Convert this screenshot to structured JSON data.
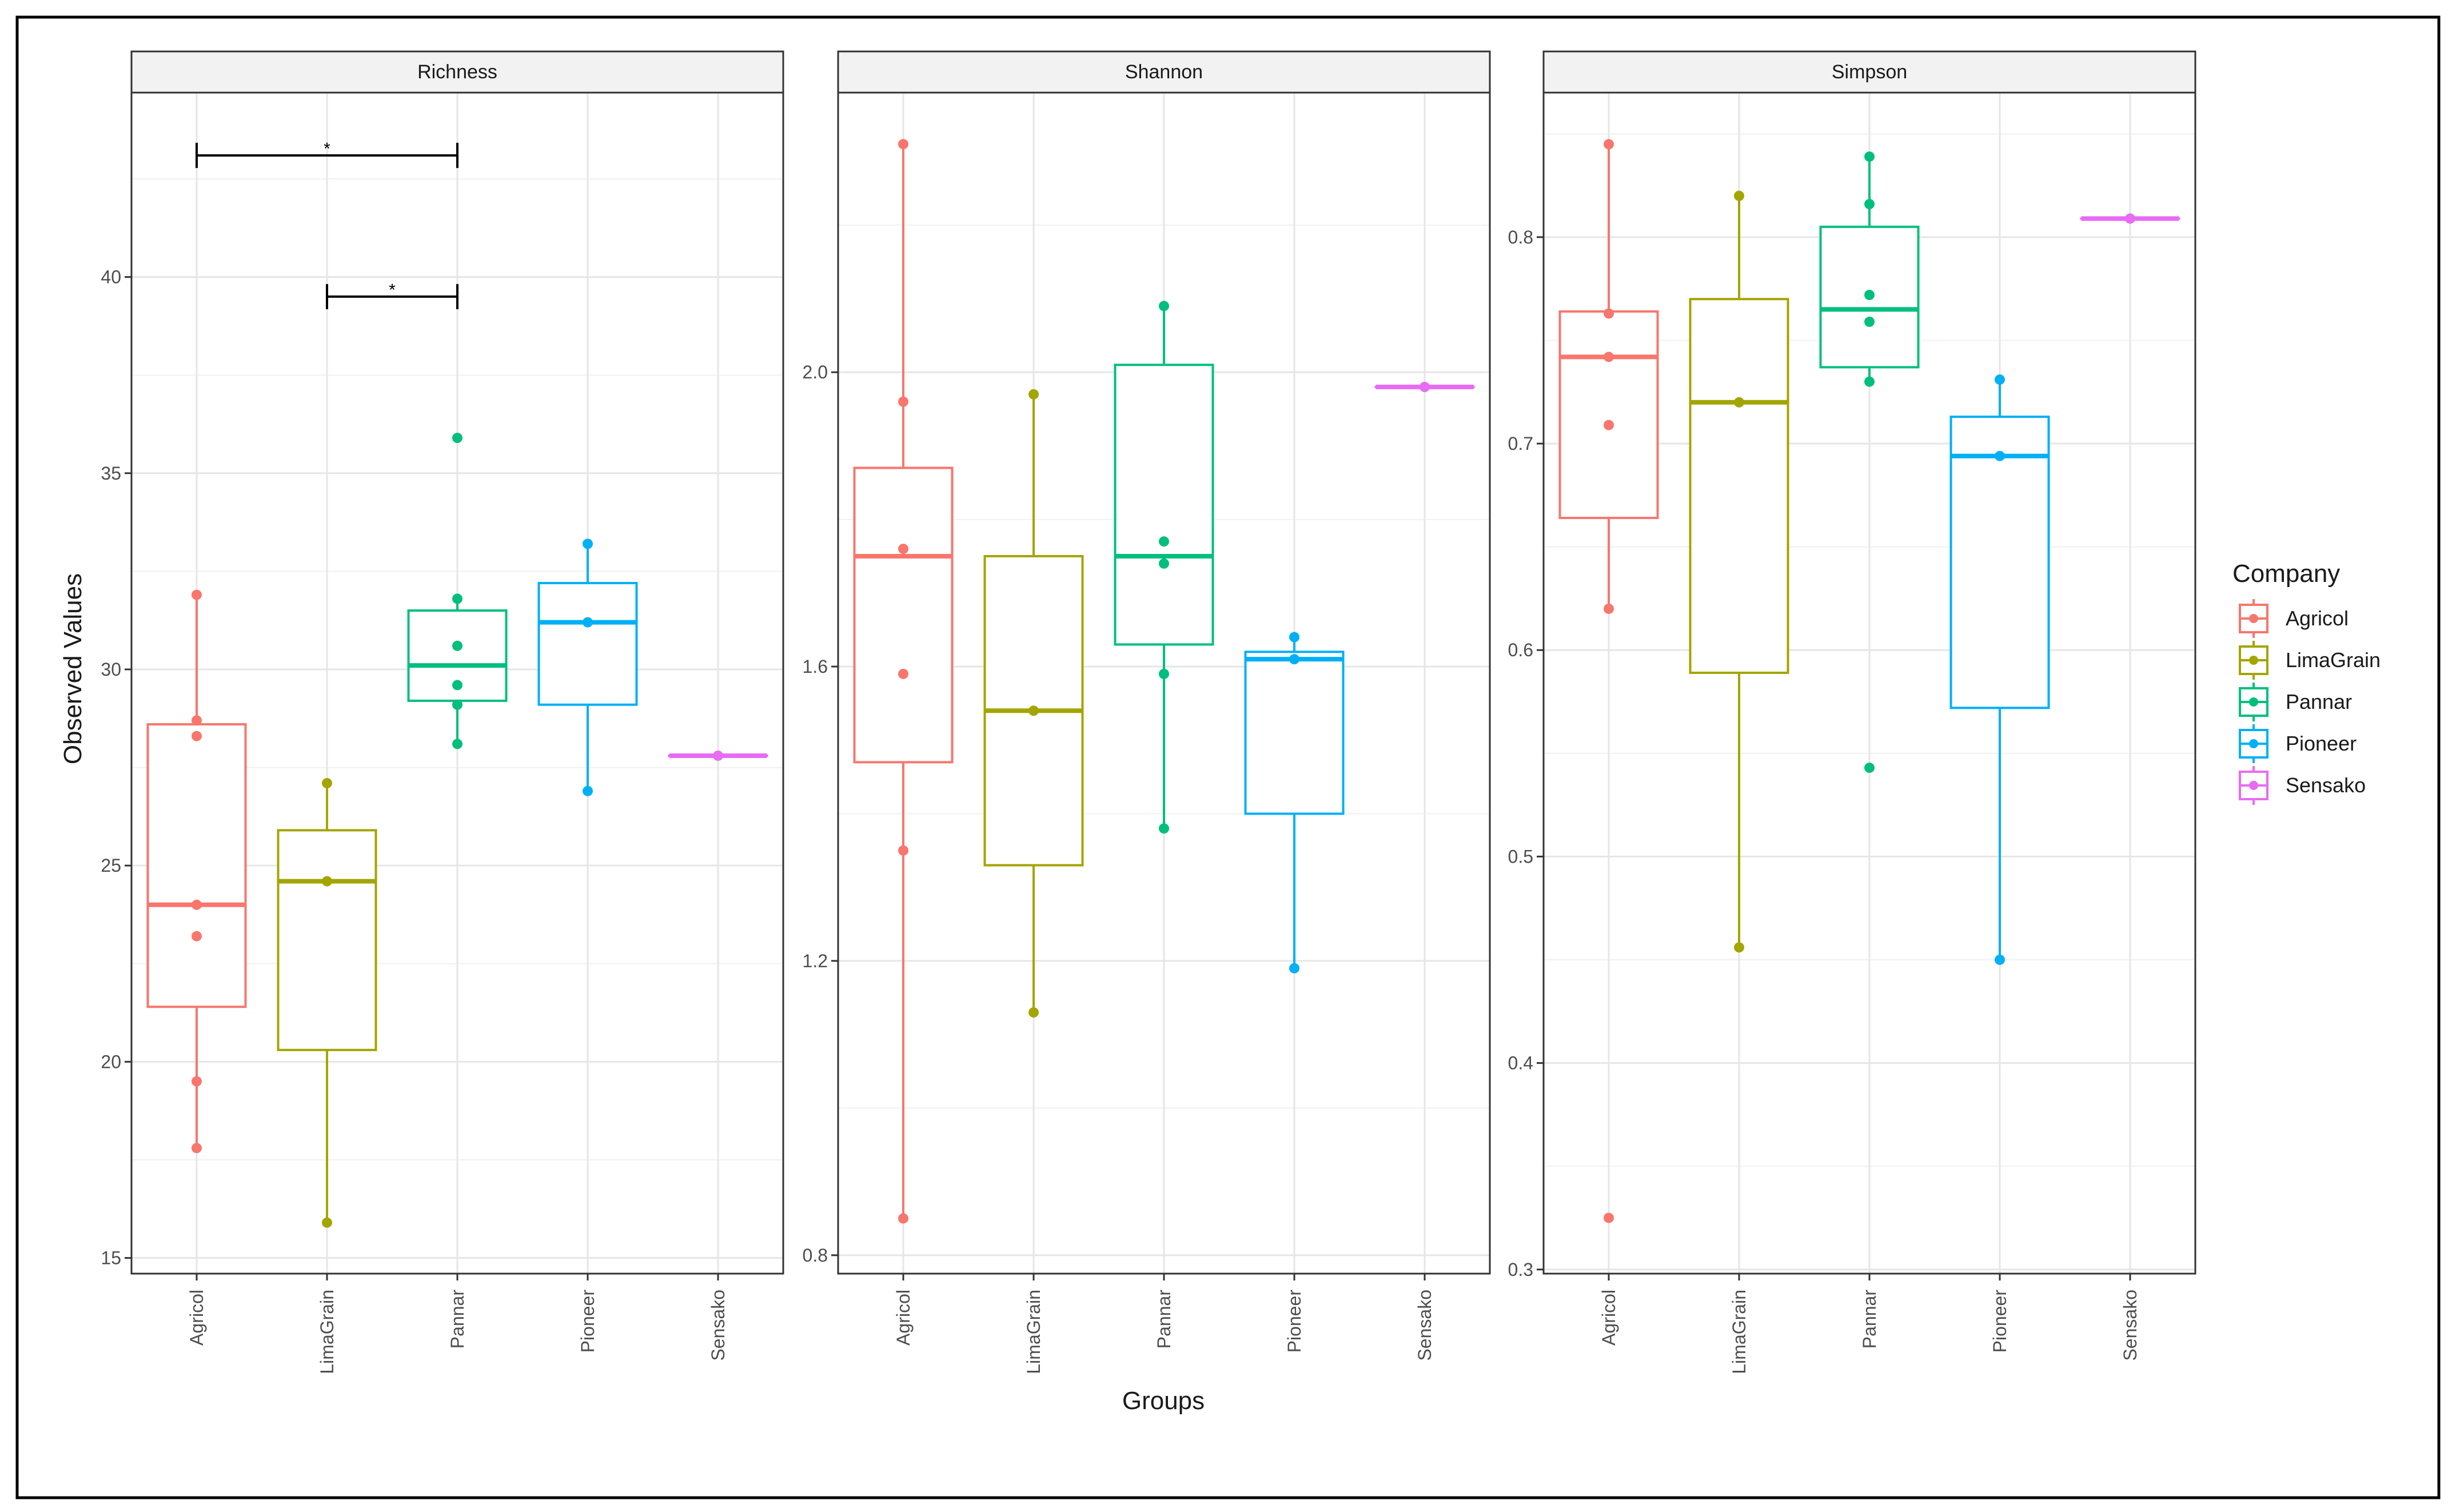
{
  "figure": {
    "ylabel": "Observed Values",
    "xlabel": "Groups"
  },
  "legend": {
    "title": "Company",
    "entries": [
      {
        "name": "Agricol",
        "color": "#F8766D"
      },
      {
        "name": "LimaGrain",
        "color": "#A3A500"
      },
      {
        "name": "Pannar",
        "color": "#00BF7D"
      },
      {
        "name": "Pioneer",
        "color": "#00B0F6"
      },
      {
        "name": "Sensako",
        "color": "#E76BF3"
      }
    ]
  },
  "chart_data": [
    {
      "type": "box",
      "title": "Richness",
      "categories": [
        "Agricol",
        "LimaGrain",
        "Pannar",
        "Pioneer",
        "Sensako"
      ],
      "ylim": [
        14.6,
        44.7
      ],
      "yticks": [
        15,
        20,
        25,
        30,
        35,
        40
      ],
      "ytick_labels": [
        "15",
        "20",
        "25",
        "30",
        "35",
        "40"
      ],
      "grid": true,
      "boxes": [
        {
          "name": "Agricol",
          "whisker_low": 17.8,
          "q1": 21.4,
          "median": 24.0,
          "q3": 28.6,
          "whisker_high": 31.9,
          "points": [
            31.9,
            28.7,
            28.3,
            24.0,
            23.2,
            19.5,
            17.8
          ]
        },
        {
          "name": "LimaGrain",
          "whisker_low": 15.9,
          "q1": 20.3,
          "median": 24.6,
          "q3": 25.9,
          "whisker_high": 27.1,
          "points": [
            27.1,
            24.6,
            15.9
          ]
        },
        {
          "name": "Pannar",
          "whisker_low": 28.1,
          "q1": 29.2,
          "median": 30.1,
          "q3": 31.5,
          "whisker_high": 31.8,
          "points": [
            35.9,
            31.8,
            30.6,
            29.6,
            29.1,
            28.1
          ]
        },
        {
          "name": "Pioneer",
          "whisker_low": 26.9,
          "q1": 29.1,
          "median": 31.2,
          "q3": 32.2,
          "whisker_high": 33.2,
          "points": [
            33.2,
            31.2,
            26.9
          ]
        },
        {
          "name": "Sensako",
          "whisker_low": 27.8,
          "q1": 27.8,
          "median": 27.8,
          "q3": 27.8,
          "whisker_high": 27.8,
          "points": [
            27.8
          ]
        }
      ],
      "significance": [
        {
          "from": "Agricol",
          "to": "Pannar",
          "y": 43.1,
          "label": "*"
        },
        {
          "from": "LimaGrain",
          "to": "Pannar",
          "y": 39.5,
          "label": "*"
        }
      ]
    },
    {
      "type": "box",
      "title": "Shannon",
      "categories": [
        "Agricol",
        "LimaGrain",
        "Pannar",
        "Pioneer",
        "Sensako"
      ],
      "ylim": [
        0.775,
        2.38
      ],
      "yticks": [
        0.8,
        1.2,
        1.6,
        2.0
      ],
      "ytick_labels": [
        "0.8",
        "1.2",
        "1.6",
        "2.0"
      ],
      "grid": true,
      "boxes": [
        {
          "name": "Agricol",
          "whisker_low": 0.85,
          "q1": 1.47,
          "median": 1.75,
          "q3": 1.87,
          "whisker_high": 2.31,
          "points": [
            2.31,
            1.96,
            1.76,
            1.59,
            1.35,
            0.85
          ]
        },
        {
          "name": "LimaGrain",
          "whisker_low": 1.13,
          "q1": 1.33,
          "median": 1.54,
          "q3": 1.75,
          "whisker_high": 1.97,
          "points": [
            1.97,
            1.54,
            1.13
          ]
        },
        {
          "name": "Pannar",
          "whisker_low": 1.38,
          "q1": 1.63,
          "median": 1.75,
          "q3": 2.01,
          "whisker_high": 2.09,
          "points": [
            2.09,
            1.77,
            1.74,
            1.59,
            1.38
          ]
        },
        {
          "name": "Pioneer",
          "whisker_low": 1.19,
          "q1": 1.4,
          "median": 1.61,
          "q3": 1.62,
          "whisker_high": 1.64,
          "points": [
            1.64,
            1.61,
            1.19
          ]
        },
        {
          "name": "Sensako",
          "whisker_low": 1.98,
          "q1": 1.98,
          "median": 1.98,
          "q3": 1.98,
          "whisker_high": 1.98,
          "points": [
            1.98
          ]
        }
      ]
    },
    {
      "type": "box",
      "title": "Simpson",
      "categories": [
        "Agricol",
        "LimaGrain",
        "Pannar",
        "Pioneer",
        "Sensako"
      ],
      "ylim": [
        0.298,
        0.87
      ],
      "yticks": [
        0.3,
        0.4,
        0.5,
        0.6,
        0.7,
        0.8
      ],
      "ytick_labels": [
        "0.3",
        "0.4",
        "0.5",
        "0.6",
        "0.7",
        "0.8"
      ],
      "grid": true,
      "boxes": [
        {
          "name": "Agricol",
          "whisker_low": 0.62,
          "q1": 0.664,
          "median": 0.742,
          "q3": 0.764,
          "whisker_high": 0.845,
          "points": [
            0.845,
            0.763,
            0.742,
            0.709,
            0.62,
            0.325
          ]
        },
        {
          "name": "LimaGrain",
          "whisker_low": 0.456,
          "q1": 0.589,
          "median": 0.72,
          "q3": 0.77,
          "whisker_high": 0.82,
          "points": [
            0.82,
            0.72,
            0.456
          ]
        },
        {
          "name": "Pannar",
          "whisker_low": 0.73,
          "q1": 0.737,
          "median": 0.765,
          "q3": 0.805,
          "whisker_high": 0.839,
          "points": [
            0.839,
            0.816,
            0.772,
            0.759,
            0.73,
            0.543
          ]
        },
        {
          "name": "Pioneer",
          "whisker_low": 0.45,
          "q1": 0.572,
          "median": 0.694,
          "q3": 0.713,
          "whisker_high": 0.731,
          "points": [
            0.731,
            0.694,
            0.45
          ]
        },
        {
          "name": "Sensako",
          "whisker_low": 0.809,
          "q1": 0.809,
          "median": 0.809,
          "q3": 0.809,
          "whisker_high": 0.809,
          "points": [
            0.809
          ]
        }
      ]
    }
  ]
}
